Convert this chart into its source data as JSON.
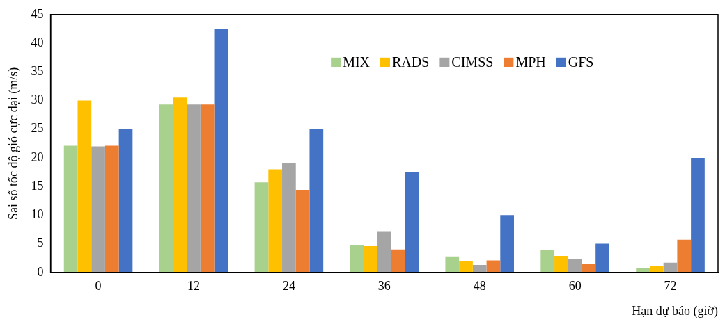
{
  "chart_data": {
    "type": "bar",
    "xlabel": "Hạn dự báo (giờ)",
    "ylabel": "Sai số tốc độ gió cực đại (m/s)",
    "categories": [
      "0",
      "12",
      "24",
      "36",
      "48",
      "60",
      "72"
    ],
    "series": [
      {
        "name": "MIX",
        "color": "#a9d18e",
        "values": [
          22.1,
          29.3,
          15.7,
          4.7,
          2.8,
          3.9,
          0.7
        ]
      },
      {
        "name": "RADS",
        "color": "#ffc000",
        "values": [
          30.0,
          30.5,
          18.0,
          4.6,
          2.0,
          2.9,
          1.1
        ]
      },
      {
        "name": "CIMSS",
        "color": "#a5a5a5",
        "values": [
          22.0,
          29.3,
          19.1,
          7.2,
          1.3,
          2.4,
          1.7
        ]
      },
      {
        "name": "MPH",
        "color": "#ed7d31",
        "values": [
          22.1,
          29.3,
          14.4,
          4.0,
          2.1,
          1.5,
          5.7
        ]
      },
      {
        "name": "GFS",
        "color": "#4472c4",
        "values": [
          25.0,
          42.5,
          25.0,
          17.5,
          10.0,
          5.0,
          20.0
        ]
      }
    ],
    "ylim": [
      0,
      45
    ],
    "yticks": [
      0,
      5,
      10,
      15,
      20,
      25,
      30,
      35,
      40,
      45
    ],
    "grid": false,
    "legend": "top"
  }
}
